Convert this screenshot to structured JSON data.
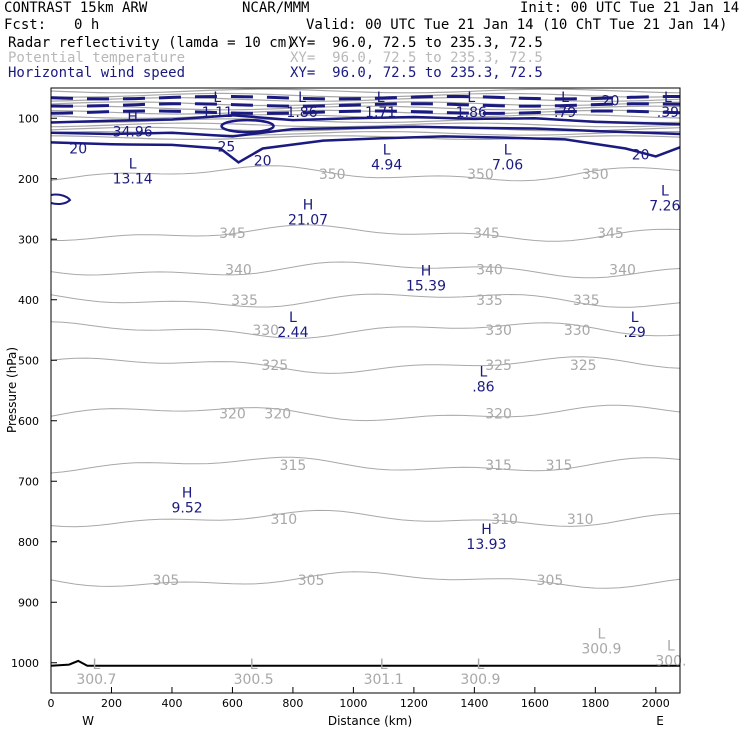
{
  "header": {
    "model": "CONTRAST 15km ARW",
    "org": "NCAR/MMM",
    "init": "Init: 00 UTC Tue 21 Jan 14",
    "fcst_label": "Fcst:",
    "fcst_value": "0 h",
    "valid": "Valid: 00 UTC Tue 21 Jan 14 (10 ChT Tue 21 Jan 14)",
    "fields": [
      {
        "name": "Radar reflectivity (lamda = 10 cm)",
        "xy": "XY=  96.0, 72.5 to 235.3, 72.5",
        "color": "#000000"
      },
      {
        "name": "Potential temperature",
        "xy": "XY=  96.0, 72.5 to 235.3, 72.5",
        "color": "#b8b8b8"
      },
      {
        "name": "Horizontal wind speed",
        "xy": "XY=  96.0, 72.5 to 235.3, 72.5",
        "color": "#1a1a80"
      }
    ]
  },
  "chart_data": {
    "type": "contour-cross-section",
    "xlabel": "Distance (km)",
    "ylabel": "Pressure (hPa)",
    "x_ticks": [
      0,
      200,
      400,
      600,
      800,
      1000,
      1200,
      1400,
      1600,
      1800,
      2000
    ],
    "y_ticks": [
      100,
      200,
      300,
      400,
      500,
      600,
      700,
      800,
      900,
      1000
    ],
    "xlim": [
      0,
      2080
    ],
    "ylim": [
      50,
      1050
    ],
    "left_end": "W",
    "right_end": "E",
    "colors": {
      "wind": "#1a1a80",
      "theta": "#a8a8a8",
      "ground": "#000000"
    },
    "theta_levels": [
      {
        "value": 305,
        "p": 863,
        "labels": [
          {
            "text": "305",
            "x": 380
          },
          {
            "text": "305",
            "x": 860
          },
          {
            "text": "305",
            "x": 1650
          }
        ]
      },
      {
        "value": 310,
        "p": 762,
        "labels": [
          {
            "text": "310",
            "x": 770
          },
          {
            "text": "310",
            "x": 1500
          },
          {
            "text": "310",
            "x": 1750
          }
        ]
      },
      {
        "value": 315,
        "p": 673,
        "labels": [
          {
            "text": "315",
            "x": 800
          },
          {
            "text": "315",
            "x": 1480
          },
          {
            "text": "315",
            "x": 1680
          }
        ]
      },
      {
        "value": 320,
        "p": 588,
        "labels": [
          {
            "text": "320",
            "x": 600
          },
          {
            "text": "320",
            "x": 750
          },
          {
            "text": "320",
            "x": 1480
          }
        ]
      },
      {
        "value": 325,
        "p": 508,
        "labels": [
          {
            "text": "325",
            "x": 740
          },
          {
            "text": "325",
            "x": 1480
          },
          {
            "text": "325",
            "x": 1760
          }
        ]
      },
      {
        "value": 330,
        "p": 450,
        "labels": [
          {
            "text": "330",
            "x": 710
          },
          {
            "text": "330",
            "x": 1480
          },
          {
            "text": "330",
            "x": 1740
          }
        ]
      },
      {
        "value": 335,
        "p": 400,
        "labels": [
          {
            "text": "335",
            "x": 640
          },
          {
            "text": "335",
            "x": 1450
          },
          {
            "text": "335",
            "x": 1770
          }
        ]
      },
      {
        "value": 340,
        "p": 350,
        "labels": [
          {
            "text": "340",
            "x": 620
          },
          {
            "text": "340",
            "x": 1450
          },
          {
            "text": "340",
            "x": 1890
          }
        ]
      },
      {
        "value": 345,
        "p": 290,
        "labels": [
          {
            "text": "345",
            "x": 600
          },
          {
            "text": "345",
            "x": 1440
          },
          {
            "text": "345",
            "x": 1850
          }
        ]
      },
      {
        "value": 350,
        "p": 192,
        "labels": [
          {
            "text": "350",
            "x": 930
          },
          {
            "text": "350",
            "x": 1420
          },
          {
            "text": "350",
            "x": 1800
          }
        ]
      }
    ],
    "wind_contours": [
      {
        "value": 20
      },
      {
        "value": 25
      }
    ],
    "wind_labels": [
      {
        "text": "20",
        "x": 90,
        "p": 150
      },
      {
        "text": "25",
        "x": 580,
        "p": 147
      },
      {
        "text": "20",
        "x": 700,
        "p": 170
      },
      {
        "text": "20",
        "x": 1850,
        "p": 71
      },
      {
        "text": "20",
        "x": 1950,
        "p": 160
      }
    ],
    "extrema": [
      {
        "type": "H",
        "value": "34.96",
        "x": 270,
        "p": 105,
        "field": "wind"
      },
      {
        "type": "L",
        "value": "1.11",
        "x": 550,
        "p": 73,
        "field": "wind"
      },
      {
        "type": "L",
        "value": "1.86",
        "x": 830,
        "p": 73,
        "field": "wind"
      },
      {
        "type": "L",
        "value": "1.71",
        "x": 1090,
        "p": 73,
        "field": "wind"
      },
      {
        "type": "L",
        "value": "1.86",
        "x": 1390,
        "p": 73,
        "field": "wind"
      },
      {
        "type": "L",
        "value": ".79",
        "x": 1700,
        "p": 73,
        "field": "wind"
      },
      {
        "type": "L",
        "value": ".39",
        "x": 2040,
        "p": 73,
        "field": "wind"
      },
      {
        "type": "L",
        "value": "4.94",
        "x": 1110,
        "p": 160,
        "field": "wind"
      },
      {
        "type": "L",
        "value": "7.06",
        "x": 1510,
        "p": 160,
        "field": "wind"
      },
      {
        "type": "L",
        "value": "13.14",
        "x": 270,
        "p": 183,
        "field": "wind"
      },
      {
        "type": "H",
        "value": "21.07",
        "x": 850,
        "p": 251,
        "field": "wind"
      },
      {
        "type": "L",
        "value": "7.26",
        "x": 2030,
        "p": 228,
        "field": "wind"
      },
      {
        "type": "H",
        "value": "15.39",
        "x": 1240,
        "p": 360,
        "field": "wind"
      },
      {
        "type": "L",
        "value": "2.44",
        "x": 800,
        "p": 437,
        "field": "wind"
      },
      {
        "type": "L",
        "value": ".29",
        "x": 1930,
        "p": 437,
        "field": "wind"
      },
      {
        "type": "L",
        "value": ".86",
        "x": 1430,
        "p": 527,
        "field": "wind"
      },
      {
        "type": "H",
        "value": "9.52",
        "x": 450,
        "p": 727,
        "field": "wind"
      },
      {
        "type": "H",
        "value": "13.93",
        "x": 1440,
        "p": 787,
        "field": "wind"
      },
      {
        "type": "L",
        "value": "300.7",
        "x": 150,
        "p": 1010,
        "field": "theta"
      },
      {
        "type": "L",
        "value": "300.5",
        "x": 670,
        "p": 1010,
        "field": "theta"
      },
      {
        "type": "L",
        "value": "301.1",
        "x": 1100,
        "p": 1010,
        "field": "theta"
      },
      {
        "type": "L",
        "value": "300.9",
        "x": 1420,
        "p": 1010,
        "field": "theta"
      },
      {
        "type": "L",
        "value": "300.9",
        "x": 1820,
        "p": 960,
        "field": "theta"
      },
      {
        "type": "L",
        "value": "300.",
        "x": 2050,
        "p": 980,
        "field": "theta"
      }
    ]
  }
}
